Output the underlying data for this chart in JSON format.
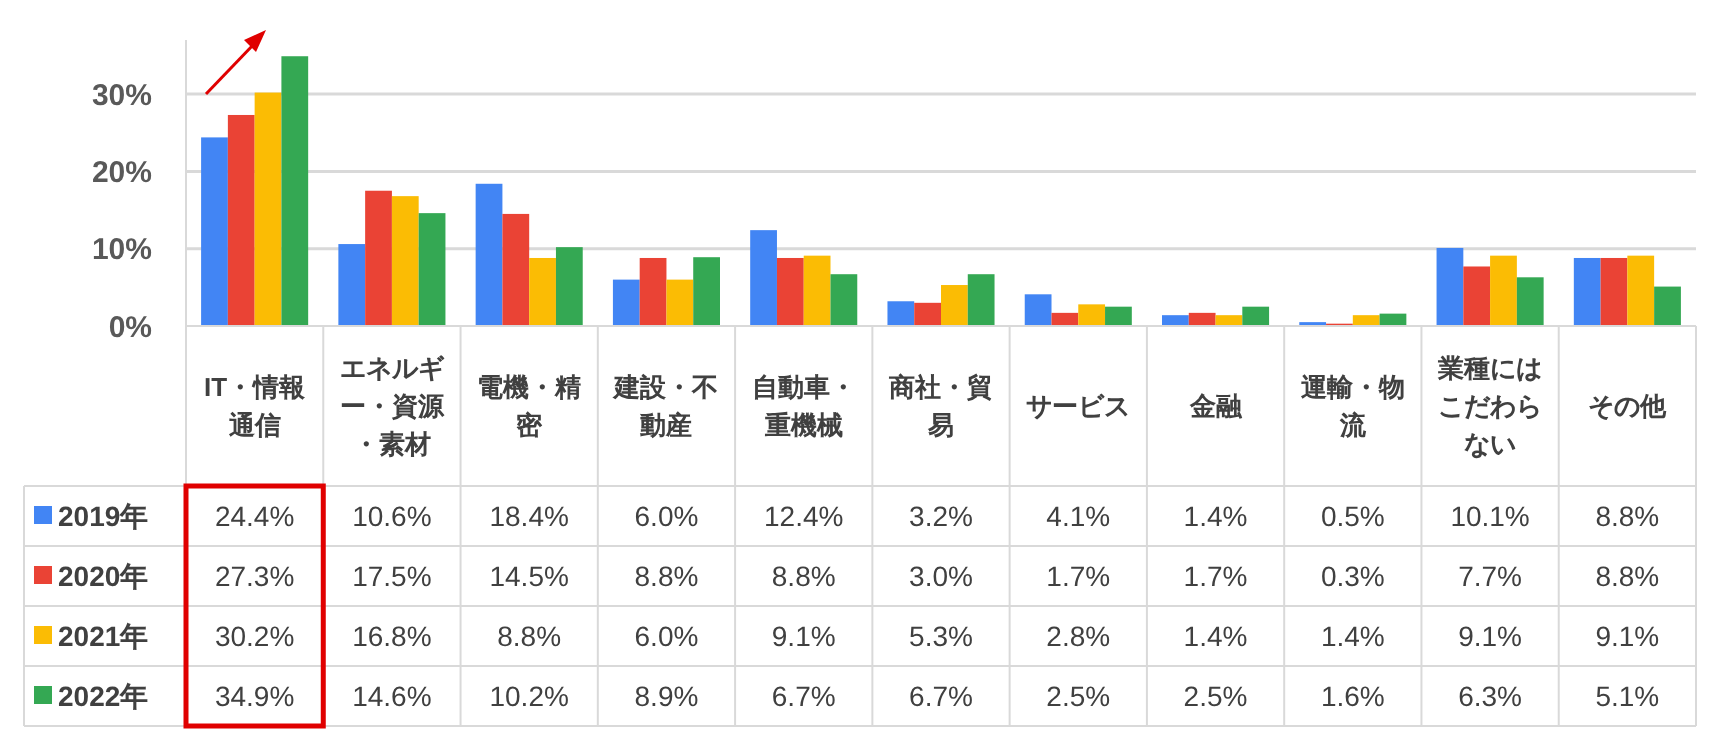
{
  "chart_data": {
    "type": "bar",
    "categories": [
      "IT・情報通信",
      "エネルギー・資源・素材",
      "電機・精密",
      "建設・不動産",
      "自動車・重機械",
      "商社・貿易",
      "サービス",
      "金融",
      "運輸・物流",
      "業種にはこだわらない",
      "その他"
    ],
    "series": [
      {
        "name": "2019年",
        "color": "#4285f4",
        "values": [
          24.4,
          10.6,
          18.4,
          6.0,
          12.4,
          3.2,
          4.1,
          1.4,
          0.5,
          10.1,
          8.8
        ],
        "value_labels": [
          "24.4%",
          "10.6%",
          "18.4%",
          "6.0%",
          "12.4%",
          "3.2%",
          "4.1%",
          "1.4%",
          "0.5%",
          "10.1%",
          "8.8%"
        ]
      },
      {
        "name": "2020年",
        "color": "#ea4335",
        "values": [
          27.3,
          17.5,
          14.5,
          8.8,
          8.8,
          3.0,
          1.7,
          1.7,
          0.3,
          7.7,
          8.8
        ],
        "value_labels": [
          "27.3%",
          "17.5%",
          "14.5%",
          "8.8%",
          "8.8%",
          "3.0%",
          "1.7%",
          "1.7%",
          "0.3%",
          "7.7%",
          "8.8%"
        ]
      },
      {
        "name": "2021年",
        "color": "#fbbc04",
        "values": [
          30.2,
          16.8,
          8.8,
          6.0,
          9.1,
          5.3,
          2.8,
          1.4,
          1.4,
          9.1,
          9.1
        ],
        "value_labels": [
          "30.2%",
          "16.8%",
          "8.8%",
          "6.0%",
          "9.1%",
          "5.3%",
          "2.8%",
          "1.4%",
          "1.4%",
          "9.1%",
          "9.1%"
        ]
      },
      {
        "name": "2022年",
        "color": "#34a853",
        "values": [
          34.9,
          14.6,
          10.2,
          8.9,
          6.7,
          6.7,
          2.5,
          2.5,
          1.6,
          6.3,
          5.1
        ],
        "value_labels": [
          "34.9%",
          "14.6%",
          "10.2%",
          "8.9%",
          "6.7%",
          "6.7%",
          "2.5%",
          "2.5%",
          "1.6%",
          "6.3%",
          "5.1%"
        ]
      }
    ],
    "ylim": [
      0,
      37
    ],
    "yticks": [
      {
        "value": 0,
        "label": "0%"
      },
      {
        "value": 10,
        "label": "10%"
      },
      {
        "value": 20,
        "label": "20%"
      },
      {
        "value": 30,
        "label": "30%"
      }
    ],
    "grid": "y",
    "legend": "bottom"
  }
}
